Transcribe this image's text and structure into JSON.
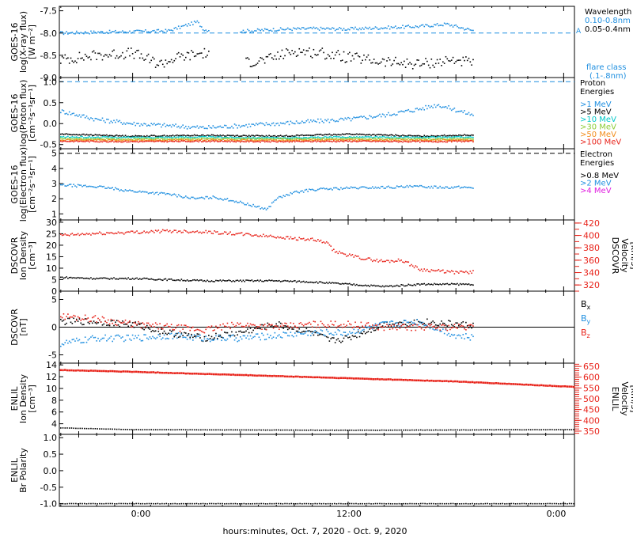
{
  "footer": {
    "xlabel": "hours:minutes, Oct.  7, 2020 - Oct.  9, 2020"
  },
  "x_ticks": [
    "0:00",
    "12:00",
    "0:00"
  ],
  "chart_data": [
    {
      "type": "scatter",
      "panel": "goes-xray",
      "ylabel_lines": [
        "GOES-16",
        "log(X-ray flux)",
        "[W m⁻²]"
      ],
      "ylim": [
        -9.0,
        -7.4
      ],
      "yticks": [
        "-7.5",
        "-8.0",
        "-8.5",
        "-9.0"
      ],
      "right_labels": [
        "Wavelength",
        "0.10-0.8nm",
        "0.05-0.4nm",
        "A",
        "flare class",
        "(.1-.8nm)"
      ],
      "reference_lines": [
        {
          "y": -8.0,
          "style": "dashed",
          "color": "#1f8fe0"
        }
      ],
      "series": [
        {
          "name": "0.10-0.8nm",
          "color": "#1f8fe0",
          "x_hours": [
            -4,
            -2,
            0,
            2,
            3.6,
            4.0,
            6,
            8,
            10,
            12,
            14,
            16,
            17.5,
            19
          ],
          "y": [
            -8.0,
            -7.98,
            -7.97,
            -7.95,
            -7.75,
            -7.93,
            -7.96,
            -7.92,
            -7.9,
            -7.91,
            -7.88,
            -7.85,
            -7.8,
            -7.95
          ]
        },
        {
          "name": "0.05-0.4nm",
          "color": "#000000",
          "x_hours": [
            -4,
            -2,
            0,
            1.5,
            2.5,
            4,
            5.5,
            7.5,
            9,
            10.5,
            12,
            14,
            16,
            18,
            19
          ],
          "y": [
            -8.6,
            -8.5,
            -8.45,
            -8.7,
            -8.55,
            -8.45,
            -8.7,
            -8.6,
            -8.4,
            -8.45,
            -8.55,
            -8.65,
            -8.7,
            -8.6,
            -8.7
          ]
        }
      ]
    },
    {
      "type": "scatter",
      "panel": "goes-proton",
      "ylabel_lines": [
        "GOES-16",
        "log(Proton flux)",
        "[cm⁻²s⁻¹sr⁻¹]"
      ],
      "ylim": [
        -0.6,
        1.1
      ],
      "yticks": [
        "1.0",
        "0.5",
        "0.0",
        "-0.5"
      ],
      "right_labels": [
        "Proton",
        "Energies"
      ],
      "reference_lines": [
        {
          "y": 1.0,
          "style": "dashed",
          "color": "#1f8fe0"
        }
      ],
      "series": [
        {
          "name": ">1 MeV",
          "color": "#1f8fe0",
          "x_hours": [
            -4,
            -2,
            0,
            2,
            4,
            6,
            8,
            10,
            12,
            14,
            16,
            17,
            19
          ],
          "y": [
            0.3,
            0.1,
            0.0,
            -0.05,
            -0.1,
            -0.05,
            0.0,
            0.05,
            0.1,
            0.2,
            0.35,
            0.45,
            0.2
          ]
        },
        {
          "name": ">5 MeV",
          "color": "#000000",
          "x_hours": [
            -4,
            0,
            4,
            8,
            12,
            16,
            19
          ],
          "y": [
            -0.25,
            -0.3,
            -0.28,
            -0.3,
            -0.25,
            -0.3,
            -0.27
          ]
        },
        {
          "name": ">10 MeV",
          "color": "#00c8c8",
          "x_hours": [
            -4,
            0,
            4,
            8,
            12,
            16,
            19
          ],
          "y": [
            -0.32,
            -0.33,
            -0.32,
            -0.34,
            -0.32,
            -0.33,
            -0.32
          ]
        },
        {
          "name": ">30 MeV",
          "color": "#8ccc33",
          "x_hours": [
            -4,
            0,
            4,
            8,
            12,
            16,
            19
          ],
          "y": [
            -0.36,
            -0.37,
            -0.36,
            -0.37,
            -0.36,
            -0.37,
            -0.36
          ]
        },
        {
          "name": ">50 MeV",
          "color": "#f28c1a",
          "x_hours": [
            -4,
            0,
            4,
            8,
            12,
            16,
            19
          ],
          "y": [
            -0.39,
            -0.4,
            -0.39,
            -0.4,
            -0.39,
            -0.4,
            -0.39
          ]
        },
        {
          "name": ">100 MeV",
          "color": "#e8231a",
          "x_hours": [
            -4,
            0,
            4,
            8,
            12,
            16,
            19
          ],
          "y": [
            -0.42,
            -0.43,
            -0.42,
            -0.43,
            -0.42,
            -0.43,
            -0.42
          ]
        }
      ]
    },
    {
      "type": "scatter",
      "panel": "goes-electron",
      "ylabel_lines": [
        "GOES-16",
        "log(Electron flux)",
        "[cm⁻²s⁻¹sr⁻¹]"
      ],
      "ylim": [
        0.6,
        5.3
      ],
      "yticks": [
        "5",
        "4",
        "3",
        "2",
        "1"
      ],
      "right_labels": [
        "Electron",
        "Energies"
      ],
      "reference_lines": [
        {
          "y": 5.0,
          "style": "dashed",
          "color": "#000000"
        }
      ],
      "series": [
        {
          "name": ">0.8 MeV",
          "color": "#000000",
          "x_hours": [],
          "y": []
        },
        {
          "name": ">2 MeV",
          "color": "#1f8fe0",
          "x_hours": [
            -4,
            -2,
            0,
            2,
            3.5,
            4.5,
            5.5,
            6.5,
            7.5,
            8,
            9,
            10,
            12,
            14,
            16,
            18,
            19
          ],
          "y": [
            2.9,
            2.8,
            2.5,
            2.3,
            2.0,
            2.1,
            1.9,
            1.6,
            1.3,
            2.0,
            2.4,
            2.6,
            2.7,
            2.75,
            2.8,
            2.75,
            2.75
          ]
        },
        {
          "name": ">4 MeV",
          "color": "#e020e0",
          "x_hours": [],
          "y": []
        }
      ]
    },
    {
      "type": "line",
      "panel": "dscovr-plasma",
      "ylabel_lines": [
        "DSCOVR",
        "Ion Density",
        "[cm⁻³]"
      ],
      "ylim": [
        0,
        31
      ],
      "yticks": [
        "30",
        "25",
        "20",
        "15",
        "10",
        "5",
        "0"
      ],
      "right_ylabel_lines": [
        "DSCOVR",
        "Velocity",
        "[km/s]"
      ],
      "right_ylim": [
        310,
        425
      ],
      "right_yticks": [
        "420",
        "400",
        "380",
        "360",
        "340",
        "320"
      ],
      "series": [
        {
          "name": "density",
          "color": "#000000",
          "axis": "left",
          "x_hours": [
            -4,
            -2,
            0,
            2,
            4,
            6,
            8,
            10,
            12,
            14,
            16,
            18,
            19
          ],
          "y": [
            6,
            5.5,
            5.5,
            5,
            4.5,
            4.5,
            4.5,
            4,
            3,
            2,
            3,
            3,
            3
          ]
        },
        {
          "name": "velocity",
          "color": "#e8231a",
          "axis": "right",
          "x_hours": [
            -4,
            -2,
            0,
            2,
            4,
            5,
            6,
            8,
            9,
            10,
            10.8,
            11.2,
            12,
            13,
            14,
            15,
            16,
            18,
            19
          ],
          "y": [
            400,
            403,
            405,
            407,
            406,
            404,
            402,
            398,
            395,
            393,
            388,
            375,
            368,
            362,
            358,
            360,
            345,
            340,
            341
          ]
        }
      ]
    },
    {
      "type": "line",
      "panel": "dscovr-mag",
      "ylabel_lines": [
        "DSCOVR",
        "[nT]"
      ],
      "ylim": [
        -6.5,
        6.5
      ],
      "yticks": [
        "5",
        "0",
        "-5"
      ],
      "right_labels": [
        "Bx",
        "By",
        "Bz"
      ],
      "reference_lines": [
        {
          "y": 0,
          "style": "solid",
          "color": "#000000"
        }
      ],
      "series": [
        {
          "name": "Bx",
          "color": "#000000",
          "x_hours": [
            -4,
            -2,
            0,
            2,
            4,
            6,
            8,
            10,
            11,
            12,
            14,
            16,
            18,
            19
          ],
          "y": [
            1,
            1,
            0.5,
            -1,
            -2,
            -1,
            0.5,
            -1,
            -2.5,
            -2,
            0.5,
            1,
            0.5,
            0.3
          ]
        },
        {
          "name": "By",
          "color": "#1f8fe0",
          "x_hours": [
            -4,
            -2,
            0,
            2,
            4,
            6,
            8,
            10,
            12,
            14,
            16,
            18,
            19
          ],
          "y": [
            -3,
            -2,
            -2,
            -1.5,
            -2,
            -2,
            -1.5,
            -1,
            -1,
            0.5,
            1,
            -1.5,
            -2
          ]
        },
        {
          "name": "Bz",
          "color": "#e8231a",
          "x_hours": [
            -4,
            -2,
            0,
            2,
            4,
            6,
            8,
            10,
            12,
            14,
            16,
            18,
            19
          ],
          "y": [
            2,
            1.5,
            0.5,
            0,
            -0.5,
            0.5,
            0,
            0.5,
            0.5,
            0,
            0,
            0,
            0
          ]
        }
      ]
    },
    {
      "type": "line",
      "panel": "enlil-plasma",
      "ylabel_lines": [
        "ENLIL",
        "Ion Density",
        "[cm⁻³]"
      ],
      "ylim": [
        2.2,
        14.3
      ],
      "yticks": [
        "14",
        "12",
        "10",
        "8",
        "6",
        "4"
      ],
      "right_ylabel_lines": [
        "ENLIL",
        "Velocity",
        "[km/s]"
      ],
      "right_ylim": [
        335,
        665
      ],
      "right_yticks": [
        "650",
        "600",
        "550",
        "500",
        "450",
        "400",
        "350"
      ],
      "series": [
        {
          "name": "density",
          "color": "#000000",
          "axis": "left",
          "x_hours": [
            -4,
            0,
            12,
            24.6
          ],
          "y": [
            3.3,
            3.0,
            2.9,
            3.0
          ]
        },
        {
          "name": "velocity",
          "color": "#e8231a",
          "axis": "right",
          "x_hours": [
            -4,
            0,
            6,
            12,
            18,
            24.6
          ],
          "y": [
            633,
            625,
            610,
            595,
            580,
            555
          ]
        }
      ]
    },
    {
      "type": "line",
      "panel": "enlil-polarity",
      "ylabel_lines": [
        "ENLIL",
        "Br Polarity"
      ],
      "ylim": [
        -1.08,
        1.1
      ],
      "yticks": [
        "1.0",
        "0.5",
        "0.0",
        "-0.5",
        "-1.0"
      ],
      "series": [
        {
          "name": "polarity",
          "color": "#000000",
          "x_hours": [
            -4,
            24.6
          ],
          "y": [
            -1.0,
            -1.0
          ]
        }
      ]
    }
  ]
}
